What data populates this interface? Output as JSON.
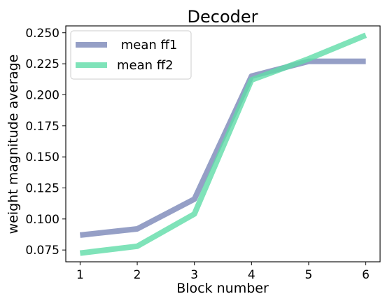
{
  "chart_data": {
    "type": "line",
    "title": "Decoder",
    "xlabel": "Block number",
    "ylabel": "weight magnitude average",
    "x": [
      1,
      2,
      3,
      4,
      5,
      6
    ],
    "xlim": [
      0.75,
      6.25
    ],
    "ylim": [
      0.0655,
      0.2555
    ],
    "xticks": [
      1,
      2,
      3,
      4,
      5,
      6
    ],
    "yticks": [
      0.075,
      0.1,
      0.125,
      0.15,
      0.175,
      0.2,
      0.225,
      0.25
    ],
    "ytick_labels": [
      "0.075",
      "0.100",
      "0.125",
      "0.150",
      "0.175",
      "0.200",
      "0.225",
      "0.250"
    ],
    "grid": false,
    "legend_position": "top-left",
    "series": [
      {
        "name": " mean ff1",
        "values": [
          0.087,
          0.092,
          0.116,
          0.215,
          0.227,
          0.227
        ],
        "color": "#7b87b8"
      },
      {
        "name": "mean ff2",
        "values": [
          0.0725,
          0.078,
          0.104,
          0.212,
          0.229,
          0.248
        ],
        "color": "#5fdca8"
      }
    ]
  }
}
